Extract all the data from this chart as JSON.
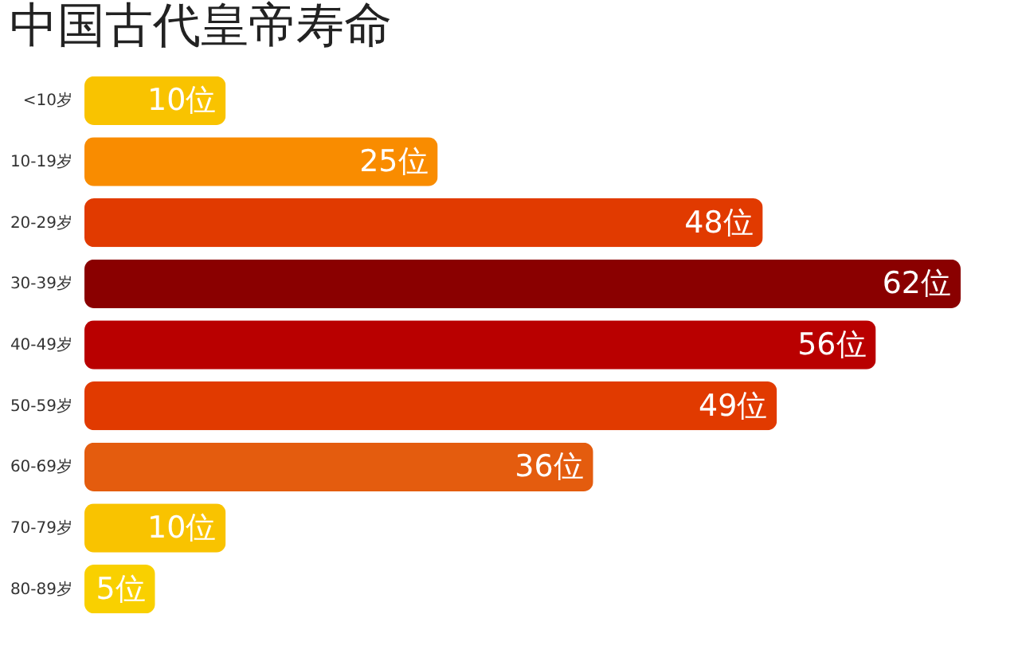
{
  "chart_data": {
    "type": "bar",
    "orientation": "horizontal",
    "title": "中国古代皇帝寿命",
    "categories": [
      "<10岁",
      "10-19岁",
      "20-29岁",
      "30-39岁",
      "40-49岁",
      "50-59岁",
      "60-69岁",
      "70-79岁",
      "80-89岁"
    ],
    "values": [
      10,
      25,
      48,
      62,
      56,
      49,
      36,
      10,
      5
    ],
    "value_labels": [
      "10位",
      "25位",
      "48位",
      "62位",
      "56位",
      "49位",
      "36位",
      "10位",
      "5位"
    ],
    "colors": [
      "#f9c300",
      "#f98c00",
      "#e13a00",
      "#8a0000",
      "#b90000",
      "#e13a00",
      "#e45c0e",
      "#f9c300",
      "#f9d000"
    ],
    "grid": false
  }
}
